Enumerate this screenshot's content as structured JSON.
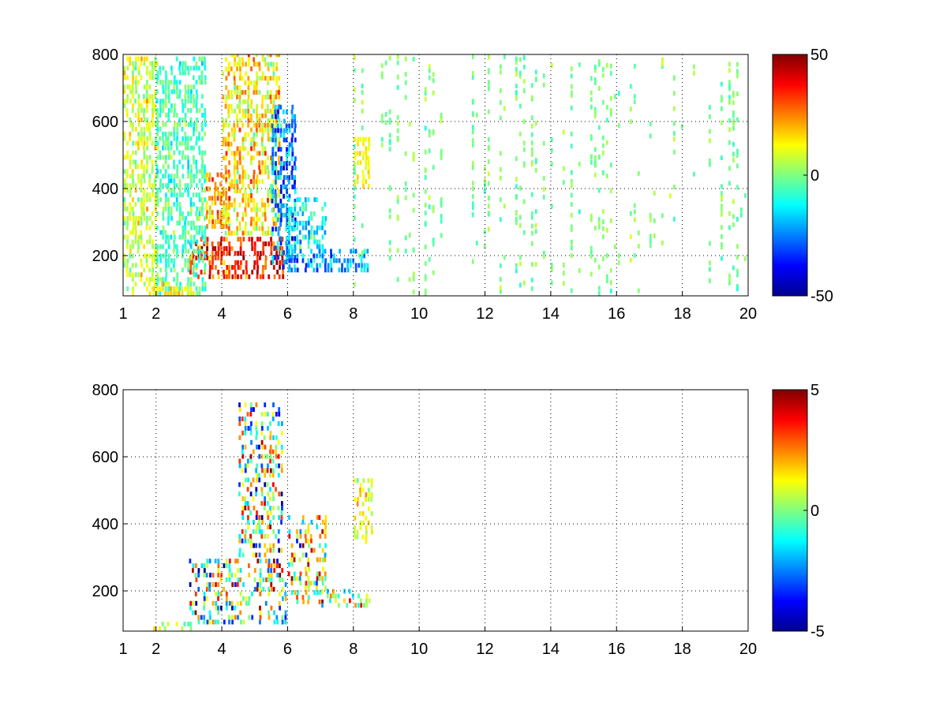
{
  "chart_data": [
    {
      "type": "heatmap",
      "title": "",
      "xlabel": "",
      "ylabel": "",
      "xlim": [
        1,
        20
      ],
      "ylim": [
        80,
        800
      ],
      "xticks": [
        1,
        2,
        4,
        6,
        8,
        10,
        12,
        14,
        16,
        18,
        20
      ],
      "yticks": [
        200,
        400,
        600,
        800
      ],
      "grid": true,
      "colormap": "jet",
      "clim": [
        -50,
        50
      ],
      "colorbar_ticks": [
        50,
        0,
        -50
      ],
      "regions": [
        {
          "x": [
            3.0,
            5.9
          ],
          "y": [
            130,
            260
          ],
          "value": 35,
          "spread": 15
        },
        {
          "x": [
            4.0,
            5.8
          ],
          "y": [
            260,
            800
          ],
          "value": 15,
          "spread": 15
        },
        {
          "x": [
            3.5,
            4.3
          ],
          "y": [
            280,
            450
          ],
          "value": 22,
          "spread": 12
        },
        {
          "x": [
            5.5,
            6.3
          ],
          "y": [
            160,
            650
          ],
          "value": -25,
          "spread": 15
        },
        {
          "x": [
            6.0,
            8.5
          ],
          "y": [
            150,
            220
          ],
          "value": -22,
          "spread": 15
        },
        {
          "x": [
            6.0,
            7.2
          ],
          "y": [
            220,
            380
          ],
          "value": -12,
          "spread": 12
        },
        {
          "x": [
            1.0,
            2.0
          ],
          "y": [
            80,
            800
          ],
          "value": 8,
          "spread": 10
        },
        {
          "x": [
            2.0,
            3.5
          ],
          "y": [
            80,
            800
          ],
          "value": -5,
          "spread": 10
        },
        {
          "x": [
            8.0,
            8.5
          ],
          "y": [
            400,
            550
          ],
          "value": 12,
          "spread": 6
        },
        {
          "x": [
            1.9,
            3.2
          ],
          "y": [
            80,
            120
          ],
          "value": 15,
          "spread": 8
        }
      ],
      "sparse_range": {
        "x": [
          8,
          20
        ],
        "value": 0,
        "spread": 7
      }
    },
    {
      "type": "heatmap",
      "title": "",
      "xlabel": "",
      "ylabel": "",
      "xlim": [
        1,
        20
      ],
      "ylim": [
        80,
        800
      ],
      "xticks": [
        1,
        2,
        4,
        6,
        8,
        10,
        12,
        14,
        16,
        18,
        20
      ],
      "yticks": [
        200,
        400,
        600,
        800
      ],
      "grid": true,
      "colormap": "jet",
      "clim": [
        -5,
        5
      ],
      "colorbar_ticks": [
        5,
        0,
        -5
      ],
      "regions": [
        {
          "x": [
            3.0,
            6.0
          ],
          "y": [
            100,
            300
          ],
          "value": 0,
          "spread": 4
        },
        {
          "x": [
            4.5,
            5.9
          ],
          "y": [
            300,
            760
          ],
          "value": 0,
          "spread": 4
        },
        {
          "x": [
            6.0,
            7.2
          ],
          "y": [
            160,
            420
          ],
          "value": 1,
          "spread": 4
        },
        {
          "x": [
            7.0,
            8.5
          ],
          "y": [
            150,
            200
          ],
          "value": 1,
          "spread": 3
        },
        {
          "x": [
            1.9,
            3.2
          ],
          "y": [
            80,
            110
          ],
          "value": 0.5,
          "spread": 1
        },
        {
          "x": [
            8.0,
            8.6
          ],
          "y": [
            340,
            530
          ],
          "value": 1,
          "spread": 1
        }
      ]
    }
  ]
}
